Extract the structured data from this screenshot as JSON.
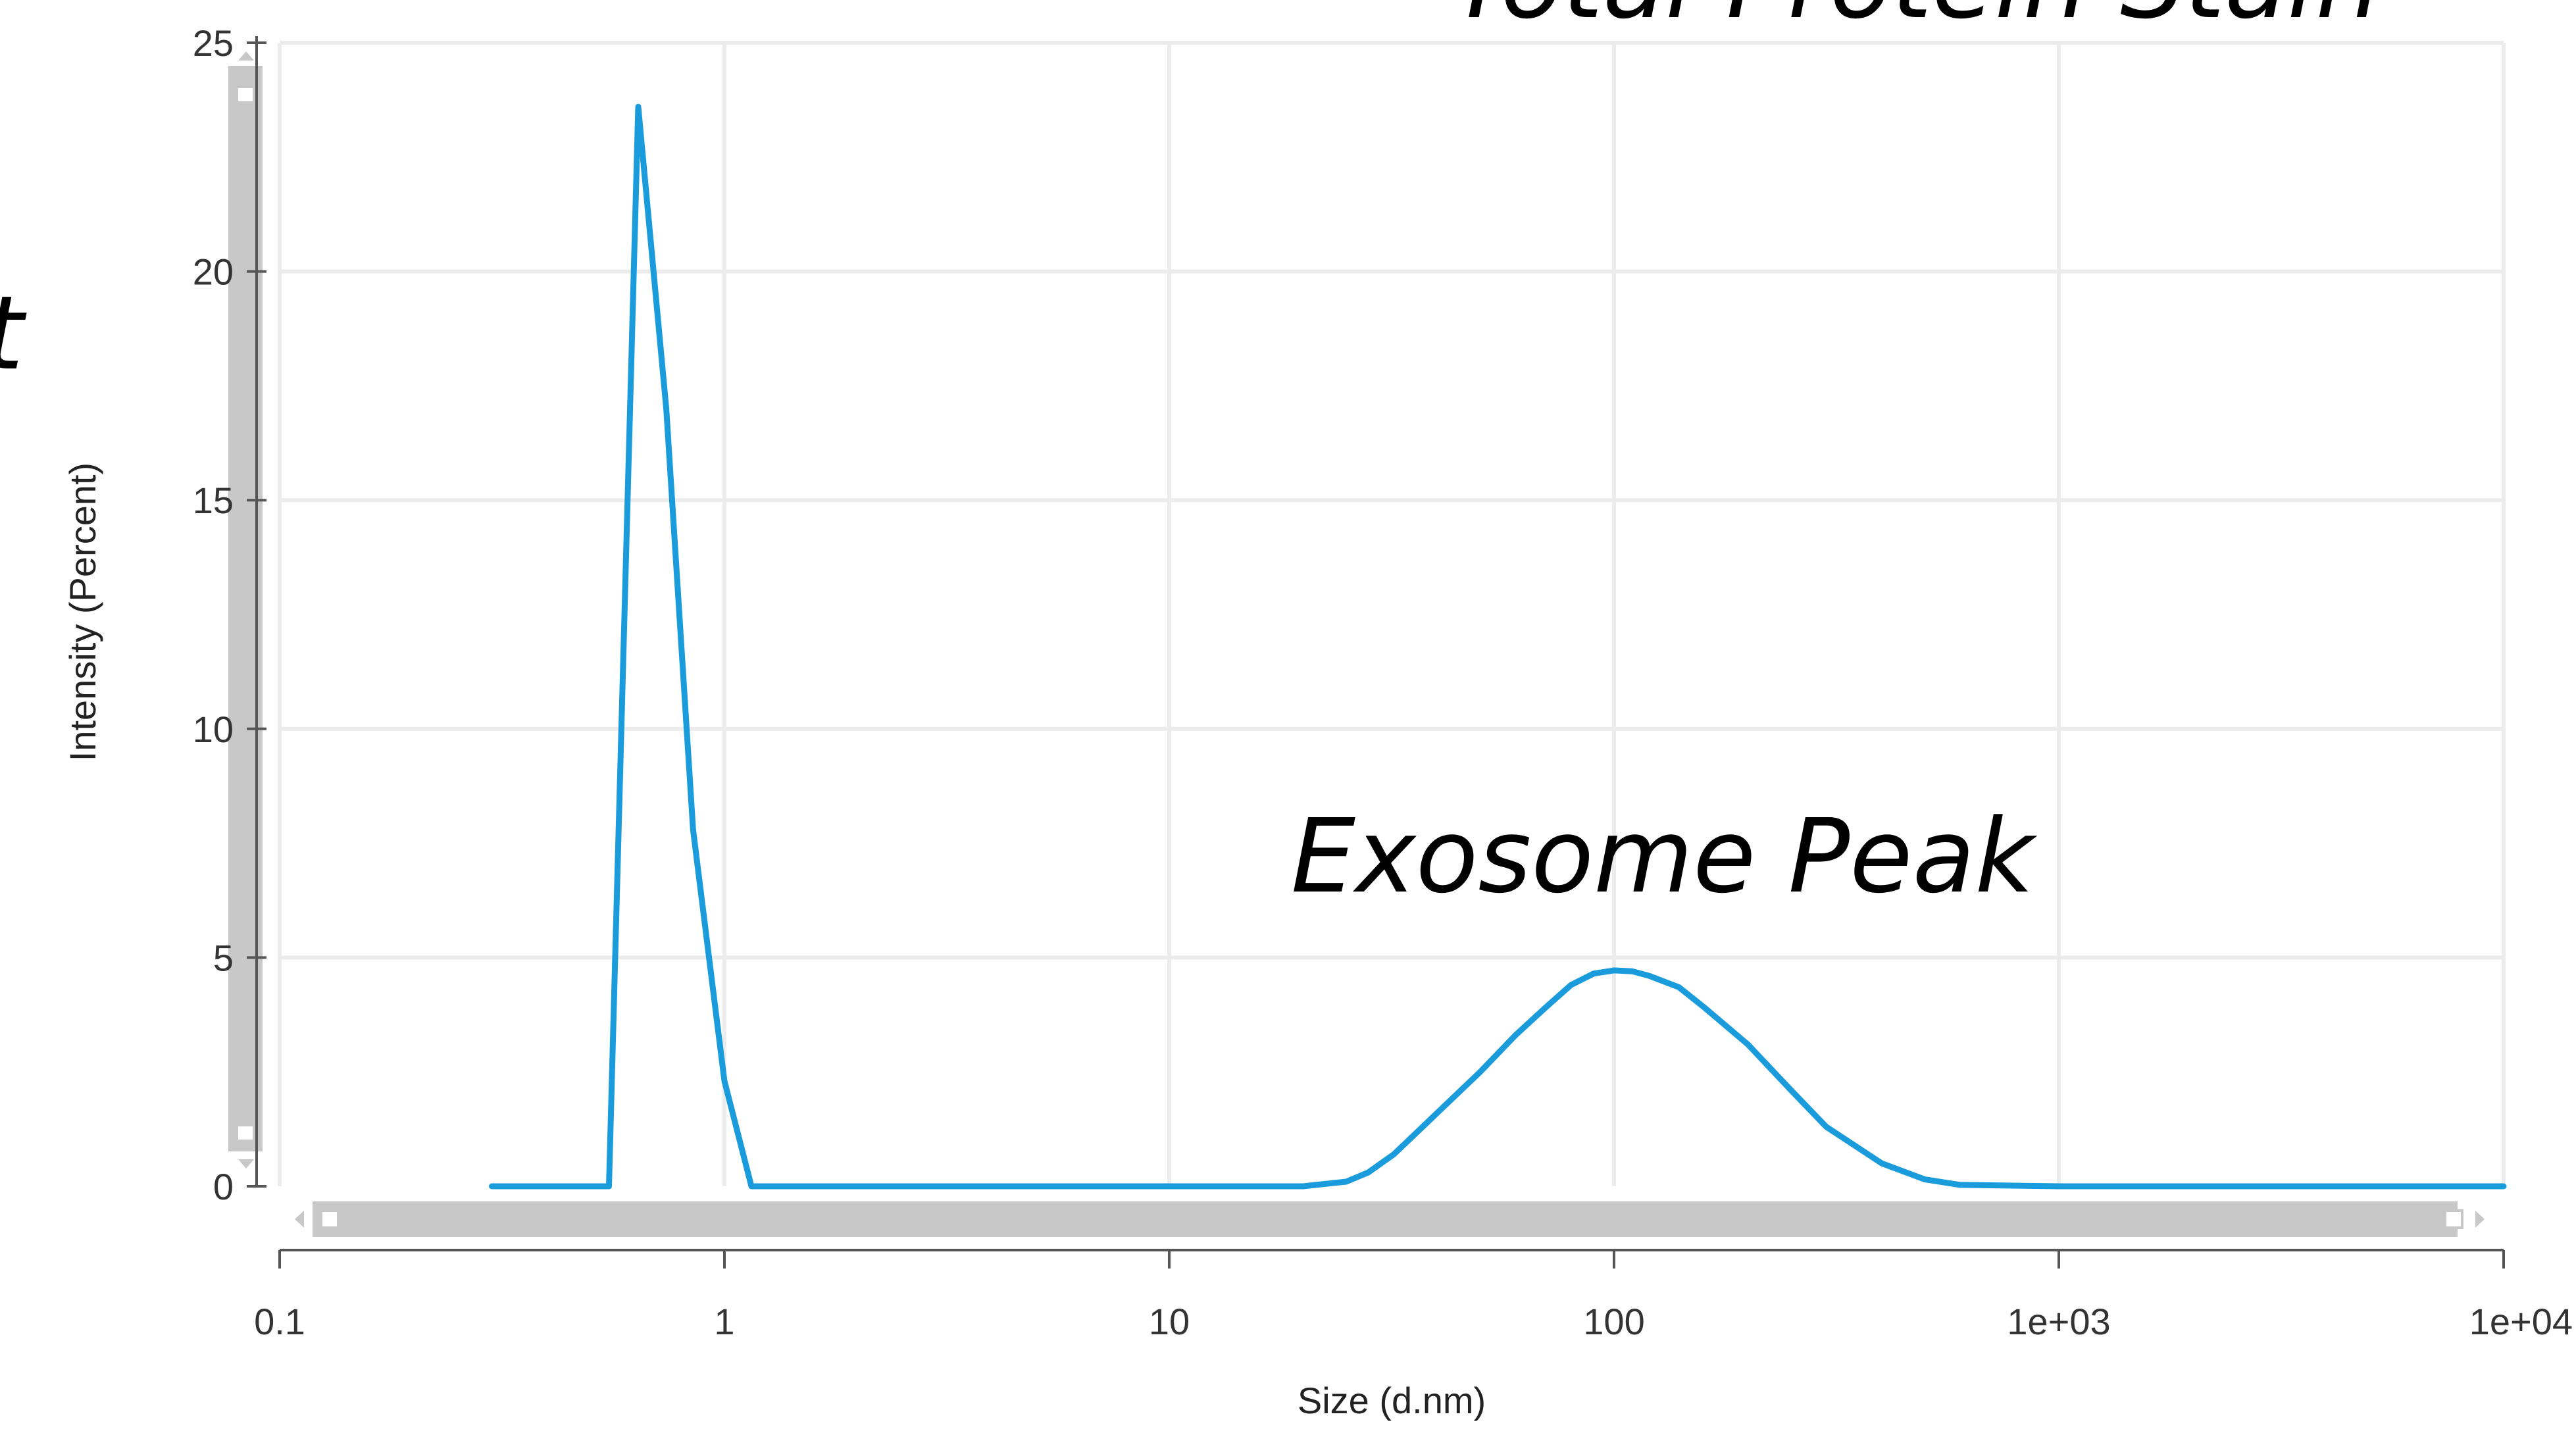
{
  "chart_data": {
    "type": "line",
    "xscale": "log",
    "xlim": [
      0.1,
      10000
    ],
    "ylim": [
      0,
      25
    ],
    "grid": true,
    "xlabel": "Size (d.nm)",
    "ylabel": "Intensity (Percent)",
    "x_ticks": [
      0.1,
      1,
      10,
      100,
      1000,
      10000
    ],
    "x_tick_labels": [
      "0.1",
      "1",
      "10",
      "100",
      "1e+03",
      "1e+04"
    ],
    "y_ticks": [
      0,
      5,
      10,
      15,
      20,
      25
    ],
    "y_tick_labels": [
      "0",
      "5",
      "10",
      "15",
      "20",
      "25"
    ],
    "annotations": {
      "exosome_peak": "Exosome Peak",
      "top_right_partial": "Total Protein Stain",
      "left_partial": "t"
    },
    "series": [
      {
        "color": "#1a9cdc",
        "x": [
          0.3,
          0.55,
          0.64,
          0.74,
          0.85,
          1.0,
          1.15,
          2,
          5,
          10,
          20,
          25,
          28,
          32,
          40,
          50,
          60,
          70,
          80,
          90,
          100,
          110,
          120,
          140,
          160,
          200,
          250,
          300,
          400,
          500,
          600,
          1000,
          10000
        ],
        "y": [
          0,
          0,
          23.6,
          17,
          7.8,
          2.3,
          0,
          0,
          0,
          0,
          0,
          0.1,
          0.3,
          0.7,
          1.6,
          2.5,
          3.3,
          3.9,
          4.4,
          4.65,
          4.72,
          4.7,
          4.6,
          4.35,
          3.9,
          3.1,
          2.1,
          1.3,
          0.5,
          0.15,
          0.03,
          0,
          0
        ]
      }
    ]
  },
  "colors": {
    "line": "#1a9cdc",
    "grid": "#ececec",
    "axis": "#555555",
    "scrollbar": "#c8c8c8"
  }
}
